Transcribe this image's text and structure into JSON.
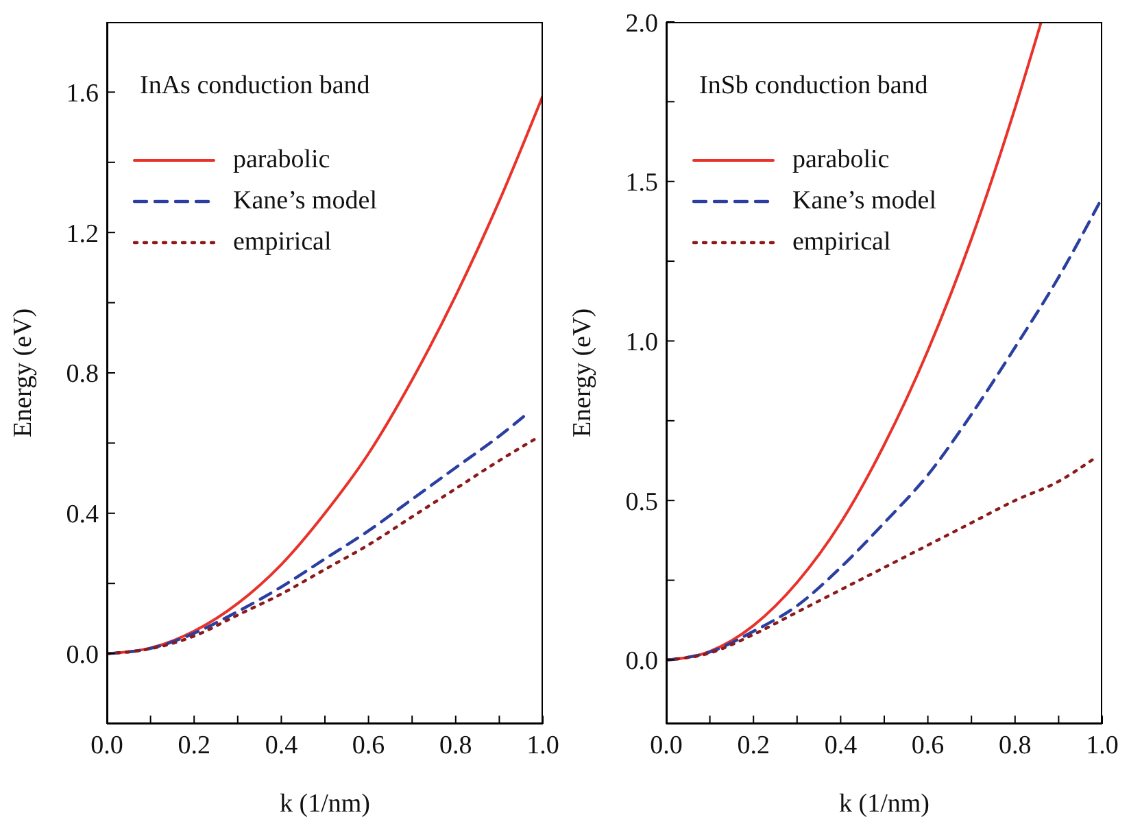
{
  "chart_data": [
    {
      "type": "line",
      "title": "InAs conduction band",
      "xlabel": "k (1/nm)",
      "ylabel": "Energy (eV)",
      "xlim": [
        0,
        1
      ],
      "ylim": [
        -0.2,
        1.8
      ],
      "xticks": [
        {
          "value": 0,
          "label": "0.0"
        },
        {
          "value": 0.1,
          "label": null
        },
        0.2,
        {
          "value": 0.3,
          "label": null
        },
        0.4,
        {
          "value": 0.5,
          "label": null
        },
        0.6,
        {
          "value": 0.7,
          "label": null
        },
        0.8,
        {
          "value": 0.9,
          "label": null
        },
        {
          "value": 1,
          "label": "1.0"
        }
      ],
      "yticks": [
        {
          "value": -0.2,
          "label": null
        },
        {
          "value": 0,
          "label": "0.0"
        },
        {
          "value": 0.2,
          "label": null
        },
        0.4,
        {
          "value": 0.6,
          "label": null
        },
        0.8,
        {
          "value": 1,
          "label": null
        },
        1.2,
        {
          "value": 1.4,
          "label": null
        },
        1.6
      ],
      "legend": "top left",
      "series": [
        {
          "name": "parabolic",
          "color": "#e8322a",
          "line_style": "solid",
          "x": [
            0,
            0.1,
            0.2,
            0.3,
            0.4,
            0.5,
            0.6,
            0.7,
            0.8,
            0.9,
            1
          ],
          "values": [
            0,
            0.016,
            0.064,
            0.143,
            0.254,
            0.4,
            0.57,
            0.78,
            1.02,
            1.29,
            1.59
          ]
        },
        {
          "name": "Kane’s model",
          "color": "#2a3fa0",
          "line_style": "dashed",
          "x": [
            0,
            0.1,
            0.2,
            0.3,
            0.4,
            0.5,
            0.6,
            0.7,
            0.8,
            0.9,
            0.97
          ],
          "values": [
            0,
            0.015,
            0.058,
            0.12,
            0.19,
            0.27,
            0.35,
            0.44,
            0.53,
            0.62,
            0.69
          ]
        },
        {
          "name": "empirical",
          "color": "#8b1a1a",
          "line_style": "dotted",
          "x": [
            0,
            0.1,
            0.2,
            0.3,
            0.4,
            0.5,
            0.6,
            0.7,
            0.8,
            0.9,
            0.98
          ],
          "values": [
            0,
            0.014,
            0.05,
            0.11,
            0.17,
            0.24,
            0.31,
            0.39,
            0.47,
            0.55,
            0.61
          ]
        }
      ]
    },
    {
      "type": "line",
      "title": "InSb conduction band",
      "xlabel": "k (1/nm)",
      "ylabel": "Energy (eV)",
      "xlim": [
        0,
        1
      ],
      "ylim": [
        -0.2,
        2
      ],
      "xticks": [
        {
          "value": 0,
          "label": "0.0"
        },
        {
          "value": 0.1,
          "label": null
        },
        0.2,
        {
          "value": 0.3,
          "label": null
        },
        0.4,
        {
          "value": 0.5,
          "label": null
        },
        0.6,
        {
          "value": 0.7,
          "label": null
        },
        0.8,
        {
          "value": 0.9,
          "label": null
        },
        {
          "value": 1,
          "label": "1.0"
        }
      ],
      "yticks": [
        {
          "value": 0,
          "label": "0.0"
        },
        {
          "value": 0.25,
          "label": null
        },
        0.5,
        {
          "value": 0.75,
          "label": null
        },
        {
          "value": 1,
          "label": "1.0"
        },
        {
          "value": 1.25,
          "label": null
        },
        1.5,
        {
          "value": 1.75,
          "label": null
        },
        {
          "value": 2,
          "label": "2.0"
        }
      ],
      "legend": "top left",
      "series": [
        {
          "name": "parabolic",
          "color": "#e8322a",
          "line_style": "solid",
          "x": [
            0,
            0.1,
            0.2,
            0.3,
            0.4,
            0.5,
            0.6,
            0.7,
            0.8,
            0.86
          ],
          "values": [
            0,
            0.027,
            0.108,
            0.243,
            0.43,
            0.675,
            0.97,
            1.32,
            1.73,
            2
          ]
        },
        {
          "name": "Kane’s model",
          "color": "#2a3fa0",
          "line_style": "dashed",
          "x": [
            0,
            0.1,
            0.2,
            0.3,
            0.4,
            0.5,
            0.6,
            0.7,
            0.8,
            0.9,
            1
          ],
          "values": [
            0,
            0.025,
            0.09,
            0.17,
            0.29,
            0.43,
            0.58,
            0.77,
            0.98,
            1.2,
            1.45
          ]
        },
        {
          "name": "empirical",
          "color": "#8b1a1a",
          "line_style": "dotted",
          "x": [
            0,
            0.1,
            0.2,
            0.3,
            0.4,
            0.5,
            0.6,
            0.7,
            0.8,
            0.9,
            0.98
          ],
          "values": [
            0,
            0.022,
            0.08,
            0.15,
            0.22,
            0.29,
            0.36,
            0.43,
            0.5,
            0.56,
            0.63
          ]
        }
      ]
    }
  ]
}
